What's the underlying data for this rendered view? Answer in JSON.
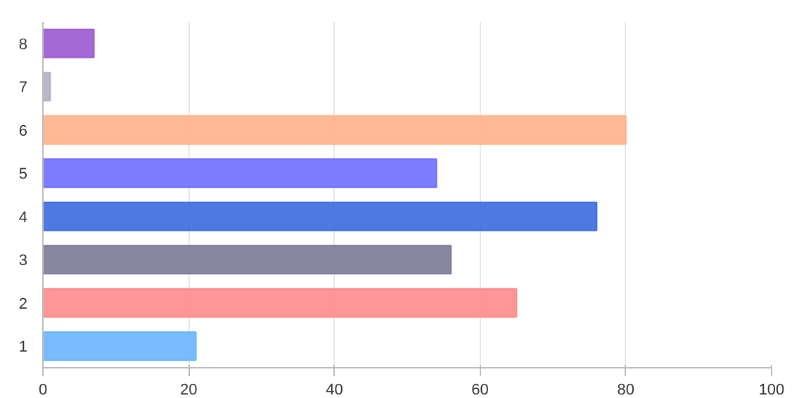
{
  "chart_data": {
    "type": "bar",
    "orientation": "horizontal",
    "categories": [
      "8",
      "7",
      "6",
      "5",
      "4",
      "3",
      "2",
      "1"
    ],
    "values": [
      7,
      1,
      80,
      54,
      76,
      56,
      65,
      21
    ],
    "colors": [
      "#9b59d0",
      "#b0b0c0",
      "#ffb38a",
      "#6f6fff",
      "#3b6ae0",
      "#7a7a98",
      "#ff8a8a",
      "#6ab4ff"
    ],
    "xlim": [
      0,
      100
    ],
    "xticks": [
      0,
      20,
      40,
      60,
      80,
      100
    ],
    "grid": "x"
  }
}
